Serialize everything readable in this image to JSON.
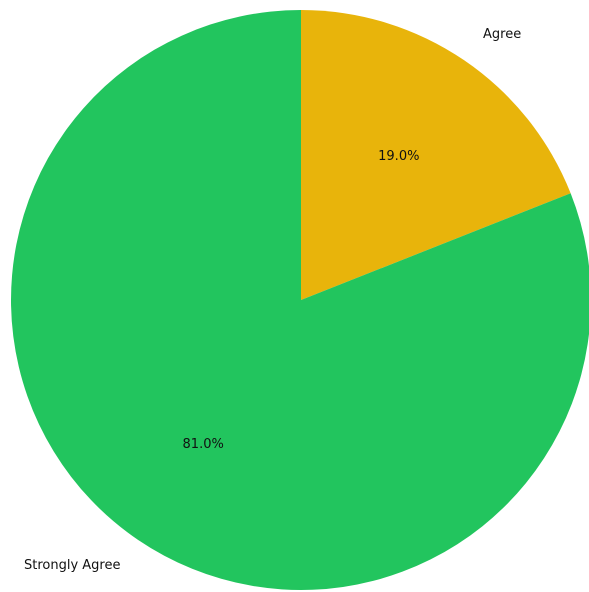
{
  "chart_data": {
    "type": "pie",
    "slices": [
      {
        "label": "Agree",
        "value": 19.0,
        "value_label": "19.0%",
        "color": "#E8B40B"
      },
      {
        "label": "Strongly Agree",
        "value": 81.0,
        "value_label": "81.0%",
        "color": "#22C55E"
      }
    ],
    "start": "12 o'clock",
    "direction": "clockwise",
    "legend": "none"
  }
}
